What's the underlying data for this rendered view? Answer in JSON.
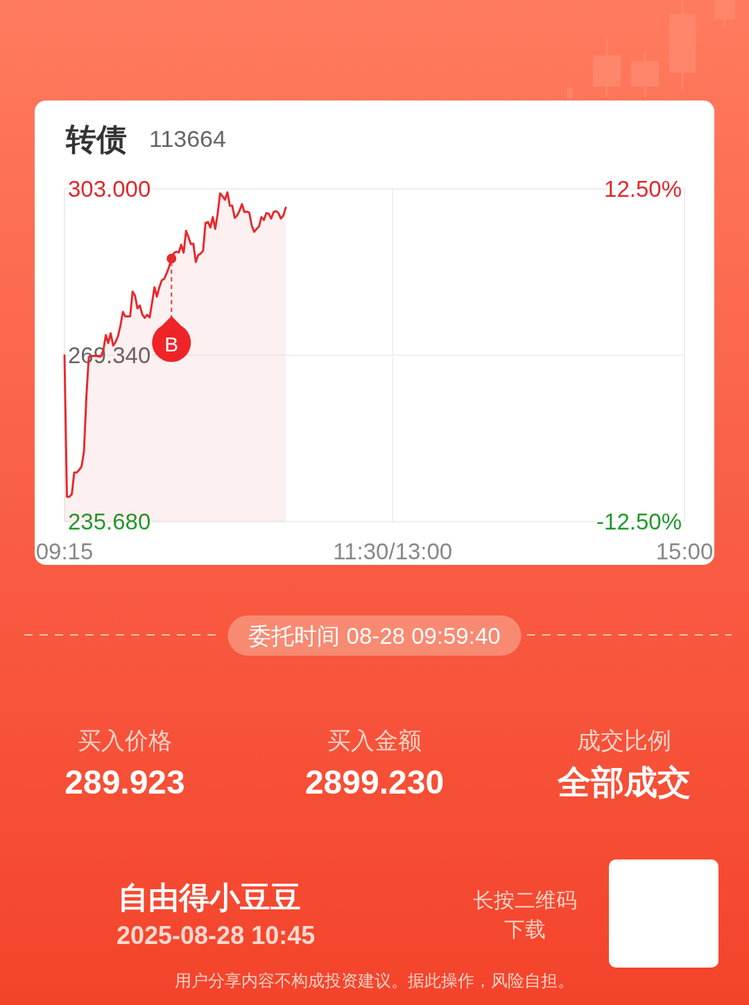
{
  "chart_data": {
    "type": "area",
    "title": "转债",
    "subtitle": "113664",
    "categories": [
      "09:15",
      null,
      null,
      null,
      null,
      null,
      null,
      null,
      null,
      null,
      null,
      null,
      null,
      null,
      null,
      null,
      null,
      null,
      null,
      null,
      null,
      null,
      null,
      null,
      null,
      null,
      null,
      null,
      null,
      null,
      null,
      null,
      null,
      null,
      null,
      null,
      null,
      null,
      null,
      null,
      null,
      null,
      null,
      null,
      null,
      null,
      null,
      null,
      null,
      null,
      null,
      null,
      null,
      null,
      null,
      null,
      null,
      null,
      null,
      null,
      null,
      null,
      null,
      null,
      null,
      null,
      null,
      null,
      null,
      null,
      null,
      null,
      null,
      null,
      null,
      null,
      null,
      null,
      null,
      null,
      null,
      null,
      null,
      null,
      null,
      null,
      null,
      null,
      null,
      null,
      null,
      null,
      null,
      null,
      null,
      null,
      null,
      null,
      null,
      null,
      null,
      null,
      null,
      null,
      null,
      null,
      null,
      null,
      null,
      null,
      null,
      null,
      null,
      null,
      null,
      null,
      null,
      null,
      null,
      null,
      null,
      null,
      null,
      null,
      null,
      null,
      null,
      null,
      null,
      null,
      null,
      null,
      null,
      null,
      null,
      "11:30/13:00",
      null,
      null,
      null,
      null,
      null,
      null,
      null,
      null,
      null,
      null,
      null,
      null,
      null,
      null,
      null,
      null,
      null,
      null,
      null,
      null,
      null,
      null,
      null,
      null,
      null,
      null,
      null,
      null,
      null,
      null,
      null,
      null,
      null,
      null,
      null,
      null,
      null,
      null,
      null,
      null,
      null,
      null,
      null,
      null,
      null,
      null,
      null,
      null,
      null,
      null,
      null,
      null,
      null,
      null,
      null,
      null,
      null,
      null,
      null,
      null,
      null,
      null,
      null,
      null,
      null,
      null,
      null,
      null,
      null,
      null,
      null,
      null,
      null,
      null,
      null,
      null,
      null,
      null,
      null,
      null,
      null,
      null,
      null,
      null,
      null,
      null,
      null,
      null,
      null,
      null,
      null,
      null,
      null,
      null,
      null,
      null,
      null,
      null,
      null,
      null,
      null,
      null,
      null,
      null,
      null,
      null,
      null,
      null,
      null,
      null,
      null,
      null,
      null,
      null,
      null,
      null,
      null,
      null,
      null,
      "15:00"
    ],
    "series": [
      {
        "color": "#e62a2e",
        "values": [
          269.3,
          240.7,
          240.7,
          241.2,
          245.6,
          245.6,
          246.1,
          246.8,
          249.8,
          260.9,
          269.0,
          269.2,
          269.2,
          269.2,
          269.2,
          269.2,
          270.4,
          273.4,
          271.8,
          273.8,
          271.3,
          272.0,
          273.2,
          275.3,
          278.1,
          277.2,
          277.2,
          277.2,
          282.2,
          281.4,
          278.8,
          279.4,
          277.6,
          276.9,
          277.5,
          277.0,
          279.9,
          283.1,
          281.2,
          283.1,
          284.5,
          284.8,
          285.9,
          287.2,
          288.9,
          290.0,
          290.3,
          290.1,
          291.7,
          290.1,
          294.5,
          293.2,
          291.8,
          291.9,
          288.2,
          289.6,
          289.9,
          290.5,
          296.1,
          296.3,
          295.2,
          297.3,
          294.9,
          298.0,
          302.1,
          301.5,
          300.8,
          302.3,
          299.6,
          299.6,
          297.1,
          297.6,
          298.6,
          299.9,
          298.3,
          298.4,
          298.2,
          295.6,
          294.3,
          294.9,
          295.4,
          297.3,
          296.7,
          298.1,
          298.0,
          297.0,
          298.3,
          298.5,
          298.1,
          297.0,
          297.6,
          299.2,
          null,
          null,
          null,
          null,
          null,
          null,
          null,
          null,
          null,
          null,
          null,
          null,
          null,
          null,
          null,
          null,
          null,
          null,
          null,
          null,
          null,
          null,
          null,
          null,
          null,
          null,
          null,
          null,
          null,
          null,
          null,
          null,
          null,
          null,
          null,
          null,
          null,
          null,
          null,
          null,
          null,
          null,
          null,
          null,
          null,
          null,
          null,
          null,
          null,
          null,
          null,
          null,
          null,
          null,
          null,
          null,
          null,
          null,
          null,
          null,
          null,
          null,
          null,
          null,
          null,
          null,
          null,
          null,
          null,
          null,
          null,
          null,
          null,
          null,
          null,
          null,
          null,
          null,
          null,
          null,
          null,
          null,
          null,
          null,
          null,
          null,
          null,
          null,
          null,
          null,
          null,
          null,
          null,
          null,
          null,
          null,
          null,
          null,
          null,
          null,
          null,
          null,
          null,
          null,
          null,
          null,
          null,
          null,
          null,
          null,
          null,
          null,
          null,
          null,
          null,
          null,
          null,
          null,
          null,
          null,
          null,
          null,
          null,
          null,
          null,
          null,
          null,
          null,
          null,
          null,
          null,
          null,
          null,
          null,
          null,
          null,
          null,
          null,
          null,
          null,
          null,
          null,
          null,
          null,
          null,
          null,
          null,
          null,
          null,
          null,
          null,
          null,
          null,
          null,
          null,
          null,
          null,
          null,
          null,
          null,
          null,
          null,
          null,
          null
        ]
      }
    ],
    "ylim": [
      235.68,
      303
    ],
    "yticks": [
      {
        "value": 235.68,
        "label": "235.680"
      },
      {
        "value": 269.34,
        "label": "269.340"
      },
      {
        "value": 303,
        "label": "303.000"
      }
    ],
    "y2lim": [
      -12.5,
      12.5
    ],
    "y2ticks": [
      {
        "value": -12.5,
        "label": "-12.50%"
      },
      {
        "value": 12.5,
        "label": "12.50%"
      }
    ],
    "grid": true,
    "annotations": [
      {
        "text": "B",
        "y": 288.9
      },
      "委托时间 08-28 09:59:40",
      "买入价格",
      "289.923",
      "买入金额",
      "2899.230",
      "成交比例",
      "全部成交",
      "自由得小豆豆",
      "2025-08-28 10:45",
      "长按二维码",
      "下载",
      "用户分享内容不构成投资建议。据此操作，风险自担。"
    ]
  }
}
